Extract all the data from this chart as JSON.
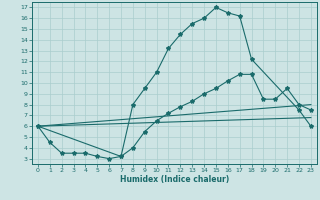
{
  "xlabel": "Humidex (Indice chaleur)",
  "ylabel": "",
  "background_color": "#cde4e4",
  "grid_color": "#aacece",
  "line_color": "#1a6b6b",
  "xlim": [
    -0.5,
    23.5
  ],
  "ylim": [
    2.5,
    17.5
  ],
  "xticks": [
    0,
    1,
    2,
    3,
    4,
    5,
    6,
    7,
    8,
    9,
    10,
    11,
    12,
    13,
    14,
    15,
    16,
    17,
    18,
    19,
    20,
    21,
    22,
    23
  ],
  "yticks": [
    3,
    4,
    5,
    6,
    7,
    8,
    9,
    10,
    11,
    12,
    13,
    14,
    15,
    16,
    17
  ],
  "lines": [
    {
      "x": [
        0,
        1,
        2,
        3,
        4,
        5,
        6,
        7,
        8,
        9,
        10,
        11,
        12,
        13,
        14,
        15,
        16,
        17,
        18,
        22,
        23
      ],
      "y": [
        6,
        4.5,
        3.5,
        3.5,
        3.5,
        3.2,
        3.0,
        3.2,
        8.0,
        9.5,
        11.0,
        13.2,
        14.5,
        15.5,
        16.0,
        17.0,
        16.5,
        16.2,
        12.2,
        7.5,
        6.0
      ],
      "marker": true
    },
    {
      "x": [
        0,
        7,
        8,
        9,
        10,
        11,
        12,
        13,
        14,
        15,
        16,
        17,
        18,
        19,
        20,
        21,
        22,
        23
      ],
      "y": [
        6,
        3.2,
        4.0,
        5.5,
        6.5,
        7.2,
        7.8,
        8.3,
        9.0,
        9.5,
        10.2,
        10.8,
        10.8,
        8.5,
        8.5,
        9.5,
        8.0,
        7.5
      ],
      "marker": true
    },
    {
      "x": [
        0,
        23
      ],
      "y": [
        6,
        8.0
      ],
      "marker": false
    },
    {
      "x": [
        0,
        23
      ],
      "y": [
        6,
        6.8
      ],
      "marker": false
    }
  ]
}
